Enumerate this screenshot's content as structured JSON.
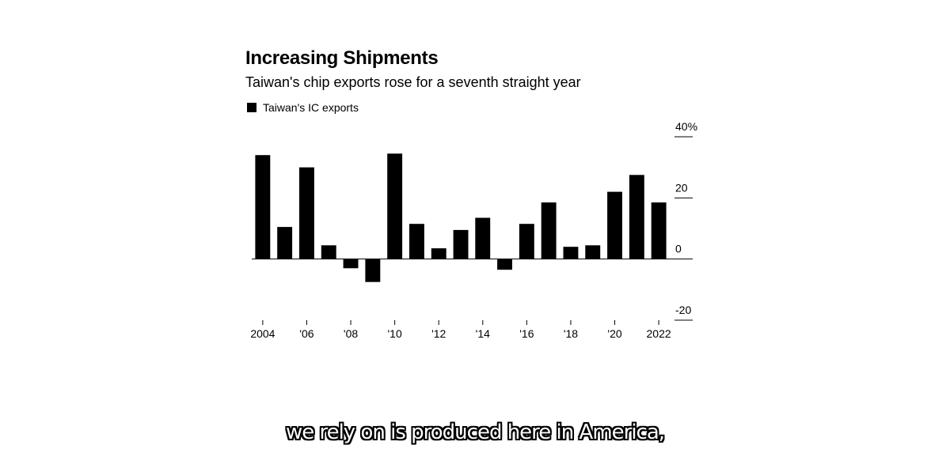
{
  "chart_data": {
    "type": "bar",
    "title": "Increasing Shipments",
    "subtitle": "Taiwan's chip exports rose for a seventh straight year",
    "legend": "Taiwan's IC exports",
    "categories": [
      "2004",
      "2005",
      "2006",
      "2007",
      "2008",
      "2009",
      "2010",
      "2011",
      "2012",
      "2013",
      "2014",
      "2015",
      "2016",
      "2017",
      "2018",
      "2019",
      "2020",
      "2021",
      "2022"
    ],
    "values": [
      34,
      10.5,
      30,
      4.5,
      -3,
      -7.5,
      34.5,
      11.5,
      3.5,
      9.5,
      13.5,
      -3.5,
      11.5,
      18.5,
      4,
      4.5,
      22,
      27.5,
      18.5
    ],
    "x_tick_labels": [
      "2004",
      "'06",
      "'08",
      "'10",
      "'12",
      "'14",
      "'16",
      "'18",
      "'20",
      "2022"
    ],
    "y_ticks": [
      {
        "value": 40,
        "label": "40%"
      },
      {
        "value": 20,
        "label": "20"
      },
      {
        "value": 0,
        "label": "0"
      },
      {
        "value": -20,
        "label": "-20"
      }
    ],
    "ylim": [
      -20,
      40
    ],
    "bar_color": "#000000",
    "legend_placement": "top-left",
    "y_axis_side": "right"
  },
  "caption": "we rely on is produced here in America,"
}
